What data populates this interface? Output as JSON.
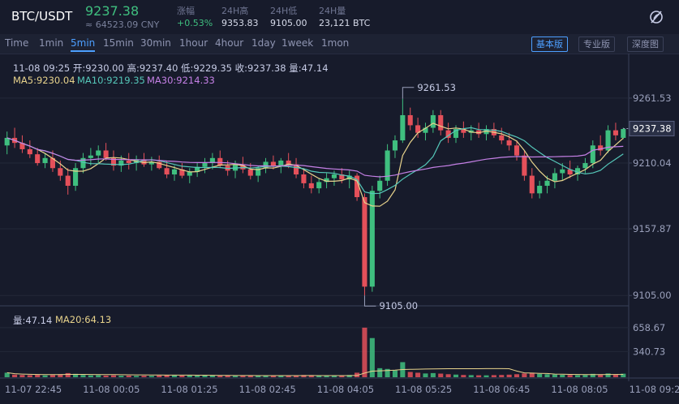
{
  "header": {
    "pair": "BTC/USDT",
    "price": "9237.38",
    "cny": "≈ 64523.09 CNY",
    "stats": [
      {
        "label": "涨幅",
        "value": "+0.53%"
      },
      {
        "label": "24H高",
        "value": "9353.83"
      },
      {
        "label": "24H低",
        "value": "9105.00"
      },
      {
        "label": "24H量",
        "value": "23,121 BTC"
      }
    ]
  },
  "toolbar": {
    "intervals": [
      "Time",
      "1min",
      "5min",
      "15min",
      "30min",
      "1hour",
      "4hour",
      "1day",
      "1week",
      "1mon"
    ],
    "active_interval": "5min",
    "views": [
      "基本版",
      "专业版",
      "深度图"
    ],
    "active_view": "基本版"
  },
  "info": {
    "ohlc": "11-08 09:25  开:9230.00  高:9237.40  低:9229.35  收:9237.38  量:47.14",
    "ma5": "MA5:9230.04",
    "ma10": "MA10:9219.35",
    "ma30": "MA30:9214.33",
    "vol": "量:47.14",
    "ma20": "MA20:64.13"
  },
  "colors": {
    "up": "#3fbf7f",
    "down": "#e5505a",
    "ma5": "#e8d38c",
    "ma10": "#55c7b9",
    "ma30": "#c580e6",
    "background": "#171b2b",
    "accent": "#4d9fff"
  },
  "chart_data": {
    "type": "candlestick",
    "price_ticks": [
      "9261.53",
      "9210.04",
      "9157.87",
      "9105.00"
    ],
    "volume_ticks": [
      "658.67",
      "340.73"
    ],
    "current_price": "9237.38",
    "high_marker": "9261.53",
    "low_marker": "9105.00",
    "x_ticks": [
      "11-07 22:45",
      "11-08 00:05",
      "11-08 01:25",
      "11-08 02:45",
      "11-08 04:05",
      "11-08 05:25",
      "11-08 06:45",
      "11-08 08:05",
      "11-08 09:2"
    ],
    "ylim": [
      9100,
      9275
    ],
    "vol_max": 700,
    "candles": [
      {
        "o": 9224,
        "h": 9235,
        "l": 9217,
        "c": 9230,
        "v": 60
      },
      {
        "o": 9230,
        "h": 9238,
        "l": 9222,
        "c": 9226,
        "v": 35
      },
      {
        "o": 9226,
        "h": 9232,
        "l": 9218,
        "c": 9221,
        "v": 30
      },
      {
        "o": 9221,
        "h": 9228,
        "l": 9214,
        "c": 9217,
        "v": 28
      },
      {
        "o": 9217,
        "h": 9222,
        "l": 9208,
        "c": 9210,
        "v": 32
      },
      {
        "o": 9210,
        "h": 9218,
        "l": 9206,
        "c": 9214,
        "v": 25
      },
      {
        "o": 9214,
        "h": 9220,
        "l": 9203,
        "c": 9206,
        "v": 30
      },
      {
        "o": 9206,
        "h": 9212,
        "l": 9196,
        "c": 9200,
        "v": 40
      },
      {
        "o": 9200,
        "h": 9206,
        "l": 9185,
        "c": 9192,
        "v": 55
      },
      {
        "o": 9192,
        "h": 9210,
        "l": 9188,
        "c": 9206,
        "v": 45
      },
      {
        "o": 9206,
        "h": 9218,
        "l": 9202,
        "c": 9214,
        "v": 30
      },
      {
        "o": 9214,
        "h": 9222,
        "l": 9208,
        "c": 9216,
        "v": 25
      },
      {
        "o": 9216,
        "h": 9224,
        "l": 9210,
        "c": 9220,
        "v": 28
      },
      {
        "o": 9220,
        "h": 9226,
        "l": 9212,
        "c": 9214,
        "v": 22
      },
      {
        "o": 9214,
        "h": 9220,
        "l": 9204,
        "c": 9208,
        "v": 26
      },
      {
        "o": 9208,
        "h": 9216,
        "l": 9203,
        "c": 9212,
        "v": 20
      },
      {
        "o": 9212,
        "h": 9218,
        "l": 9205,
        "c": 9210,
        "v": 22
      },
      {
        "o": 9210,
        "h": 9216,
        "l": 9204,
        "c": 9213,
        "v": 18
      },
      {
        "o": 9213,
        "h": 9218,
        "l": 9207,
        "c": 9209,
        "v": 20
      },
      {
        "o": 9209,
        "h": 9215,
        "l": 9204,
        "c": 9211,
        "v": 18
      },
      {
        "o": 9211,
        "h": 9216,
        "l": 9205,
        "c": 9206,
        "v": 24
      },
      {
        "o": 9206,
        "h": 9212,
        "l": 9198,
        "c": 9201,
        "v": 30
      },
      {
        "o": 9201,
        "h": 9208,
        "l": 9196,
        "c": 9205,
        "v": 26
      },
      {
        "o": 9205,
        "h": 9210,
        "l": 9198,
        "c": 9200,
        "v": 22
      },
      {
        "o": 9200,
        "h": 9206,
        "l": 9194,
        "c": 9203,
        "v": 24
      },
      {
        "o": 9203,
        "h": 9210,
        "l": 9199,
        "c": 9207,
        "v": 20
      },
      {
        "o": 9207,
        "h": 9214,
        "l": 9202,
        "c": 9210,
        "v": 22
      },
      {
        "o": 9210,
        "h": 9218,
        "l": 9205,
        "c": 9214,
        "v": 25
      },
      {
        "o": 9214,
        "h": 9220,
        "l": 9206,
        "c": 9208,
        "v": 20
      },
      {
        "o": 9208,
        "h": 9212,
        "l": 9200,
        "c": 9204,
        "v": 22
      },
      {
        "o": 9204,
        "h": 9212,
        "l": 9198,
        "c": 9209,
        "v": 18
      },
      {
        "o": 9209,
        "h": 9215,
        "l": 9202,
        "c": 9205,
        "v": 20
      },
      {
        "o": 9205,
        "h": 9210,
        "l": 9197,
        "c": 9200,
        "v": 24
      },
      {
        "o": 9200,
        "h": 9208,
        "l": 9195,
        "c": 9206,
        "v": 20
      },
      {
        "o": 9206,
        "h": 9214,
        "l": 9202,
        "c": 9211,
        "v": 18
      },
      {
        "o": 9211,
        "h": 9216,
        "l": 9205,
        "c": 9208,
        "v": 16
      },
      {
        "o": 9208,
        "h": 9214,
        "l": 9202,
        "c": 9212,
        "v": 18
      },
      {
        "o": 9212,
        "h": 9218,
        "l": 9206,
        "c": 9209,
        "v": 16
      },
      {
        "o": 9209,
        "h": 9214,
        "l": 9198,
        "c": 9201,
        "v": 26
      },
      {
        "o": 9201,
        "h": 9206,
        "l": 9190,
        "c": 9194,
        "v": 30
      },
      {
        "o": 9194,
        "h": 9200,
        "l": 9186,
        "c": 9190,
        "v": 28
      },
      {
        "o": 9190,
        "h": 9198,
        "l": 9186,
        "c": 9195,
        "v": 22
      },
      {
        "o": 9195,
        "h": 9202,
        "l": 9190,
        "c": 9198,
        "v": 20
      },
      {
        "o": 9198,
        "h": 9204,
        "l": 9192,
        "c": 9201,
        "v": 18
      },
      {
        "o": 9201,
        "h": 9206,
        "l": 9194,
        "c": 9197,
        "v": 22
      },
      {
        "o": 9197,
        "h": 9204,
        "l": 9190,
        "c": 9200,
        "v": 30
      },
      {
        "o": 9200,
        "h": 9202,
        "l": 9180,
        "c": 9183,
        "v": 60
      },
      {
        "o": 9183,
        "h": 9186,
        "l": 9105,
        "c": 9112,
        "v": 658
      },
      {
        "o": 9112,
        "h": 9192,
        "l": 9108,
        "c": 9188,
        "v": 520
      },
      {
        "o": 9188,
        "h": 9200,
        "l": 9182,
        "c": 9196,
        "v": 120
      },
      {
        "o": 9196,
        "h": 9225,
        "l": 9192,
        "c": 9220,
        "v": 110
      },
      {
        "o": 9220,
        "h": 9232,
        "l": 9214,
        "c": 9228,
        "v": 90
      },
      {
        "o": 9228,
        "h": 9261,
        "l": 9226,
        "c": 9248,
        "v": 200
      },
      {
        "o": 9248,
        "h": 9254,
        "l": 9236,
        "c": 9240,
        "v": 70
      },
      {
        "o": 9240,
        "h": 9246,
        "l": 9230,
        "c": 9234,
        "v": 60
      },
      {
        "o": 9234,
        "h": 9242,
        "l": 9228,
        "c": 9238,
        "v": 50
      },
      {
        "o": 9238,
        "h": 9252,
        "l": 9234,
        "c": 9248,
        "v": 55
      },
      {
        "o": 9248,
        "h": 9252,
        "l": 9232,
        "c": 9236,
        "v": 48
      },
      {
        "o": 9236,
        "h": 9242,
        "l": 9226,
        "c": 9230,
        "v": 40
      },
      {
        "o": 9230,
        "h": 9240,
        "l": 9226,
        "c": 9237,
        "v": 35
      },
      {
        "o": 9237,
        "h": 9243,
        "l": 9230,
        "c": 9234,
        "v": 30
      },
      {
        "o": 9234,
        "h": 9240,
        "l": 9228,
        "c": 9236,
        "v": 28
      },
      {
        "o": 9236,
        "h": 9242,
        "l": 9230,
        "c": 9233,
        "v": 26
      },
      {
        "o": 9233,
        "h": 9240,
        "l": 9228,
        "c": 9237,
        "v": 25
      },
      {
        "o": 9237,
        "h": 9242,
        "l": 9230,
        "c": 9232,
        "v": 28
      },
      {
        "o": 9232,
        "h": 9238,
        "l": 9225,
        "c": 9228,
        "v": 30
      },
      {
        "o": 9228,
        "h": 9234,
        "l": 9220,
        "c": 9224,
        "v": 34
      },
      {
        "o": 9224,
        "h": 9228,
        "l": 9212,
        "c": 9216,
        "v": 40
      },
      {
        "o": 9216,
        "h": 9220,
        "l": 9196,
        "c": 9200,
        "v": 50
      },
      {
        "o": 9200,
        "h": 9206,
        "l": 9182,
        "c": 9186,
        "v": 60
      },
      {
        "o": 9186,
        "h": 9196,
        "l": 9182,
        "c": 9192,
        "v": 45
      },
      {
        "o": 9192,
        "h": 9200,
        "l": 9186,
        "c": 9196,
        "v": 40
      },
      {
        "o": 9196,
        "h": 9206,
        "l": 9190,
        "c": 9202,
        "v": 36
      },
      {
        "o": 9202,
        "h": 9210,
        "l": 9196,
        "c": 9205,
        "v": 32
      },
      {
        "o": 9205,
        "h": 9212,
        "l": 9198,
        "c": 9201,
        "v": 30
      },
      {
        "o": 9201,
        "h": 9208,
        "l": 9196,
        "c": 9206,
        "v": 28
      },
      {
        "o": 9206,
        "h": 9214,
        "l": 9202,
        "c": 9210,
        "v": 30
      },
      {
        "o": 9210,
        "h": 9228,
        "l": 9206,
        "c": 9224,
        "v": 45
      },
      {
        "o": 9224,
        "h": 9232,
        "l": 9216,
        "c": 9220,
        "v": 38
      },
      {
        "o": 9220,
        "h": 9240,
        "l": 9218,
        "c": 9236,
        "v": 50
      },
      {
        "o": 9236,
        "h": 9242,
        "l": 9228,
        "c": 9232,
        "v": 35
      },
      {
        "o": 9230,
        "h": 9238,
        "l": 9229,
        "c": 9237,
        "v": 47
      }
    ]
  }
}
